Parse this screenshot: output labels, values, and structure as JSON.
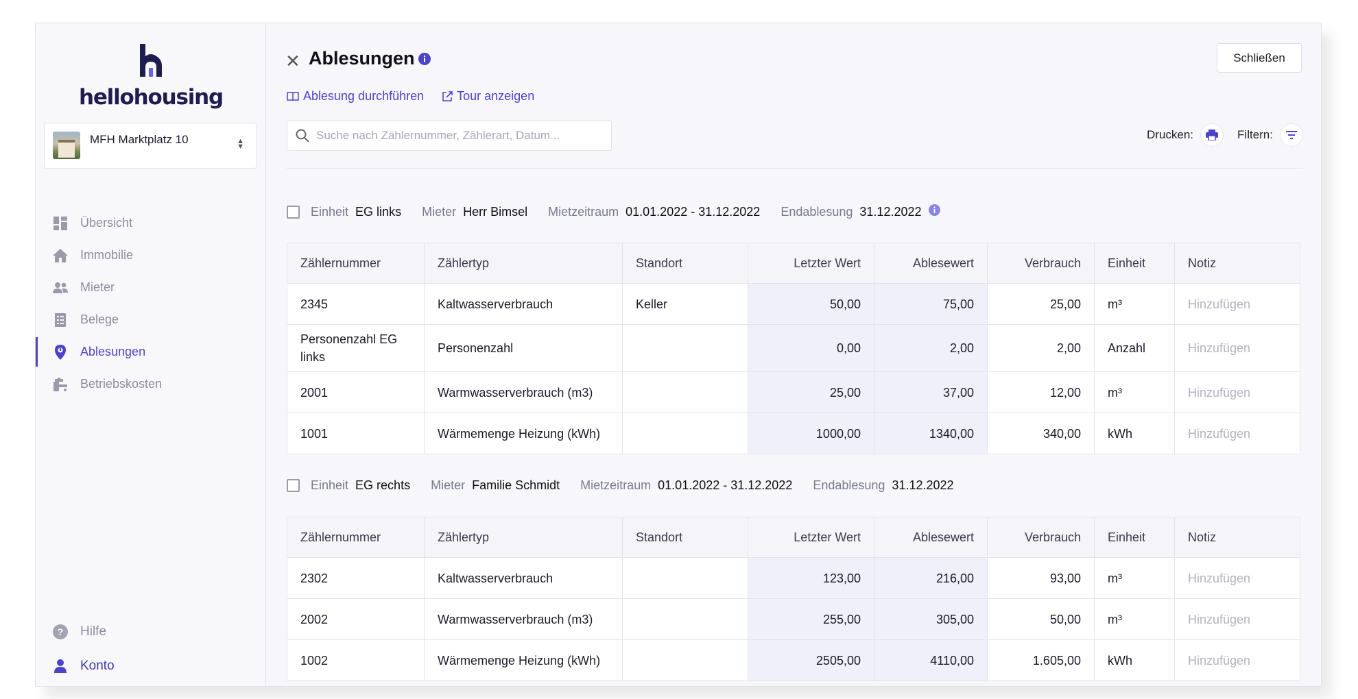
{
  "app": {
    "brand": "hellohousing",
    "property": "MFH Marktplatz 10"
  },
  "sidebar": {
    "items": [
      {
        "label": "Übersicht",
        "icon": "dashboard-icon"
      },
      {
        "label": "Immobilie",
        "icon": "home-icon"
      },
      {
        "label": "Mieter",
        "icon": "people-icon"
      },
      {
        "label": "Belege",
        "icon": "receipt-icon"
      },
      {
        "label": "Ablesungen",
        "icon": "meter-icon",
        "active": true
      },
      {
        "label": "Betriebskosten",
        "icon": "faucet-icon"
      }
    ],
    "bottom": [
      {
        "label": "Hilfe",
        "icon": "help-icon"
      },
      {
        "label": "Konto",
        "icon": "user-icon"
      }
    ]
  },
  "header": {
    "title": "Ablesungen",
    "close_label": "Schließen",
    "links": [
      {
        "label": "Ablesung durchführen",
        "icon": "book-icon"
      },
      {
        "label": "Tour anzeigen",
        "icon": "external-link-icon"
      }
    ],
    "search_placeholder": "Suche nach Zählernummer, Zählerart, Datum...",
    "print_label": "Drucken:",
    "filter_label": "Filtern:"
  },
  "columns": [
    "Zählernummer",
    "Zählertyp",
    "Standort",
    "Letzter Wert",
    "Ablesewert",
    "Verbrauch",
    "Einheit",
    "Notiz"
  ],
  "groups": [
    {
      "labels": {
        "unit": "Einheit",
        "tenant": "Mieter",
        "period": "Mietzeitraum",
        "final": "Endablesung"
      },
      "unit": "EG links",
      "tenant": "Herr Bimsel",
      "period": "01.01.2022 - 31.12.2022",
      "final": "31.12.2022",
      "rows": [
        {
          "number": "2345",
          "type": "Kaltwasserverbrauch",
          "location": "Keller",
          "last": "50,00",
          "reading": "75,00",
          "usage": "25,00",
          "unit": "m³",
          "note": "Hinzufügen"
        },
        {
          "number": "Personenzahl EG links",
          "type": "Personenzahl",
          "location": "",
          "last": "0,00",
          "reading": "2,00",
          "usage": "2,00",
          "unit": "Anzahl",
          "note": "Hinzufügen"
        },
        {
          "number": "2001",
          "type": "Warmwasserverbrauch (m3)",
          "location": "",
          "last": "25,00",
          "reading": "37,00",
          "usage": "12,00",
          "unit": "m³",
          "note": "Hinzufügen"
        },
        {
          "number": "1001",
          "type": "Wärmemenge Heizung (kWh)",
          "location": "",
          "last": "1000,00",
          "reading": "1340,00",
          "usage": "340,00",
          "unit": "kWh",
          "note": "Hinzufügen"
        }
      ]
    },
    {
      "labels": {
        "unit": "Einheit",
        "tenant": "Mieter",
        "period": "Mietzeitraum",
        "final": "Endablesung"
      },
      "unit": "EG rechts",
      "tenant": "Familie Schmidt",
      "period": "01.01.2022 - 31.12.2022",
      "final": "31.12.2022",
      "rows": [
        {
          "number": "2302",
          "type": "Kaltwasserverbrauch",
          "location": "",
          "last": "123,00",
          "reading": "216,00",
          "usage": "93,00",
          "unit": "m³",
          "note": "Hinzufügen"
        },
        {
          "number": "2002",
          "type": "Warmwasserverbrauch (m3)",
          "location": "",
          "last": "255,00",
          "reading": "305,00",
          "usage": "50,00",
          "unit": "m³",
          "note": "Hinzufügen"
        },
        {
          "number": "1002",
          "type": "Wärmemenge Heizung (kWh)",
          "location": "",
          "last": "2505,00",
          "reading": "4110,00",
          "usage": "1.605,00",
          "unit": "kWh",
          "note": "Hinzufügen"
        }
      ]
    }
  ],
  "colors": {
    "accent": "#4b43c9",
    "brand_dark": "#1f1d4f",
    "info": "#6c63e6"
  }
}
